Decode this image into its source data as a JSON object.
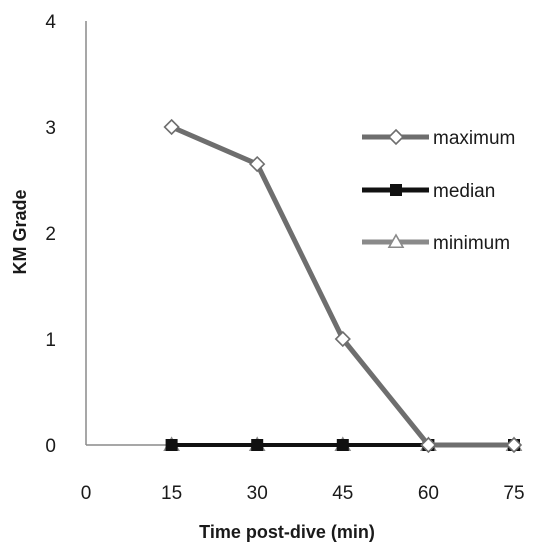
{
  "chart_data": {
    "type": "line",
    "title": "",
    "xlabel": "Time post-dive (min)",
    "ylabel": "KM Grade",
    "x": [
      15,
      30,
      45,
      60,
      75
    ],
    "x_ticks": [
      "0",
      "15",
      "30",
      "45",
      "60",
      "75"
    ],
    "y_ticks": [
      "0",
      "1",
      "2",
      "3",
      "4"
    ],
    "xlim": [
      0,
      75
    ],
    "ylim": [
      0,
      4
    ],
    "grid": false,
    "legend": "right",
    "series": [
      {
        "name": "maximum",
        "values": [
          3,
          2.65,
          1,
          0,
          0
        ],
        "color": "#6e6e6e",
        "marker": "diamond-open"
      },
      {
        "name": "median",
        "values": [
          0,
          0,
          0,
          0,
          0
        ],
        "color": "#111111",
        "marker": "square-filled"
      },
      {
        "name": "minimum",
        "values": [
          0,
          0,
          0,
          0,
          0
        ],
        "color": "#8a8a8a",
        "marker": "triangle-open"
      }
    ]
  }
}
